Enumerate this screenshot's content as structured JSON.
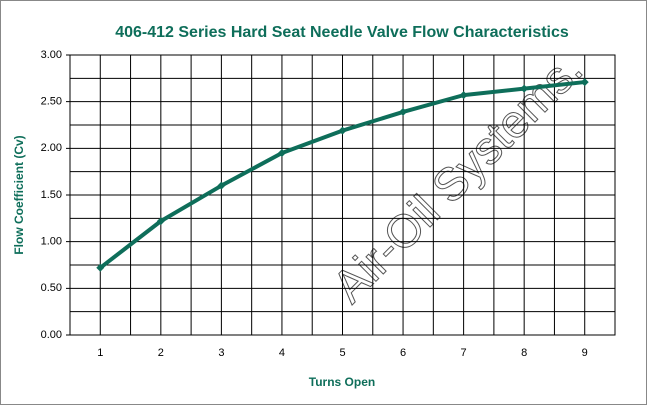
{
  "chart_data": {
    "type": "line",
    "title": "406-412 Series Hard Seat Needle Valve Flow Characteristics",
    "x_label": "Turns Open",
    "y_label": "Flow Coefficient (Cv)",
    "watermark": "Air-Oil Systems.",
    "categories": [
      "1",
      "2",
      "3",
      "4",
      "5",
      "6",
      "7",
      "8",
      "9"
    ],
    "values": [
      0.72,
      1.22,
      1.6,
      1.95,
      2.19,
      2.39,
      2.57,
      2.64,
      2.71
    ],
    "color": "#0e6e5a",
    "ylim": [
      0,
      3
    ],
    "yticks": [
      {
        "value": 0,
        "label": "0.00"
      },
      {
        "value": 0.5,
        "label": "0.50"
      },
      {
        "value": 1,
        "label": "1.00"
      },
      {
        "value": 1.5,
        "label": "1.50"
      },
      {
        "value": 2,
        "label": "2.00"
      },
      {
        "value": 2.5,
        "label": "2.50"
      },
      {
        "value": 3,
        "label": "3.00"
      }
    ],
    "minor_yticks": [
      0.25,
      0.75,
      1.25,
      1.75,
      2.25,
      2.75
    ],
    "grid": true
  }
}
